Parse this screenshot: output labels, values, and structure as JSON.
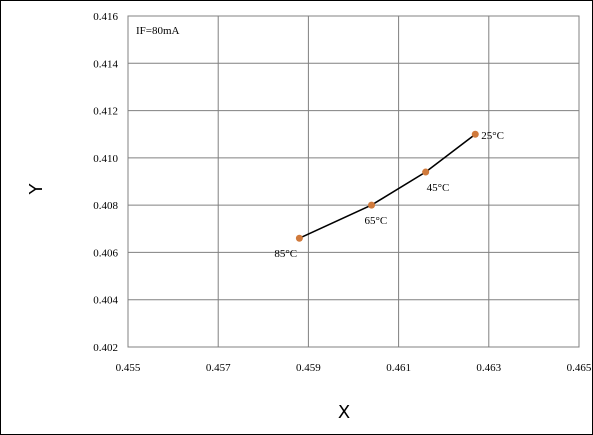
{
  "chart_data": {
    "type": "scatter",
    "title": "",
    "xlabel": "X",
    "ylabel": "Y",
    "annotation": "IF=80mA",
    "xlim": [
      0.455,
      0.465
    ],
    "ylim": [
      0.402,
      0.416
    ],
    "xticks": [
      "0.455",
      "0.457",
      "0.459",
      "0.461",
      "0.463",
      "0.465"
    ],
    "yticks": [
      "0.402",
      "0.404",
      "0.406",
      "0.408",
      "0.410",
      "0.412",
      "0.414",
      "0.416"
    ],
    "grid": "major",
    "series": [
      {
        "color": "#d07a3c",
        "line_color": "#000000",
        "points": [
          {
            "x": 0.4588,
            "y": 0.4066,
            "label": "85°C"
          },
          {
            "x": 0.4604,
            "y": 0.408,
            "label": "65°C"
          },
          {
            "x": 0.4616,
            "y": 0.4094,
            "label": "45°C"
          },
          {
            "x": 0.4627,
            "y": 0.411,
            "label": "25°C"
          }
        ]
      }
    ]
  }
}
